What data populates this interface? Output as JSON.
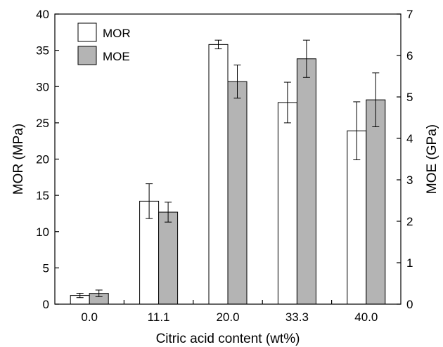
{
  "chart_data": {
    "type": "bar",
    "categories": [
      "0.0",
      "11.1",
      "20.0",
      "33.3",
      "40.0"
    ],
    "xlabel": "Citric acid content (wt%)",
    "ylabel": "MOR (MPa)",
    "y2label": "MOE (GPa)",
    "ylim": [
      0,
      40
    ],
    "y2lim": [
      0,
      7
    ],
    "yticks": [
      "0",
      "5",
      "10",
      "15",
      "20",
      "25",
      "30",
      "35",
      "40"
    ],
    "y2ticks": [
      "0",
      "1",
      "2",
      "3",
      "4",
      "5",
      "6",
      "7"
    ],
    "legend_position": "top-left",
    "series": [
      {
        "name": "MOR",
        "axis": "left",
        "color": "#ffffff",
        "values": [
          1.2,
          14.2,
          35.8,
          27.8,
          23.9
        ],
        "errors": [
          0.3,
          2.4,
          0.6,
          2.8,
          4.0
        ]
      },
      {
        "name": "MOE",
        "axis": "right",
        "color": "#b4b4b4",
        "values": [
          0.26,
          2.22,
          5.37,
          5.92,
          4.93
        ],
        "errors": [
          0.08,
          0.24,
          0.4,
          0.45,
          0.65
        ]
      }
    ],
    "grid": false
  }
}
